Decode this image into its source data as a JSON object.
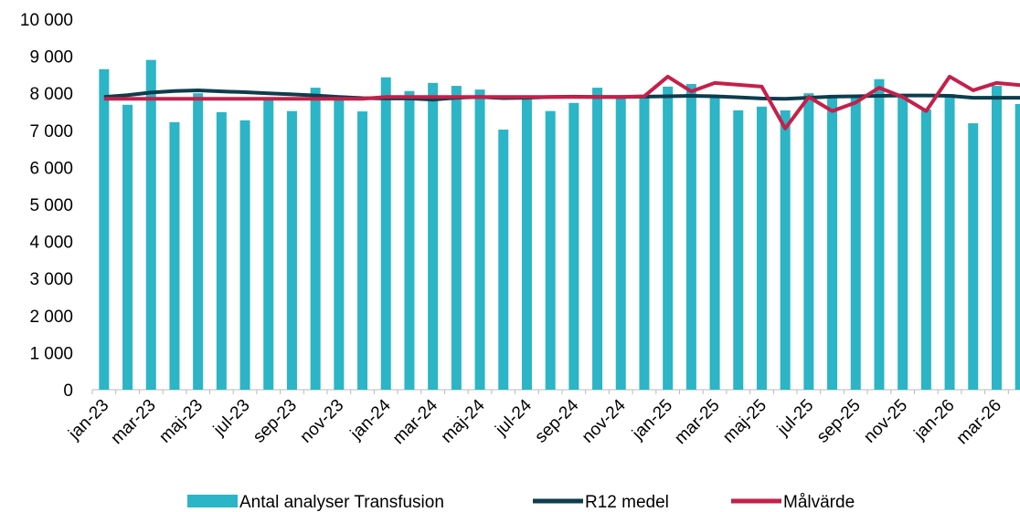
{
  "chart_data": {
    "type": "bar_line",
    "categories": [
      "jan-23",
      null,
      "mar-23",
      null,
      "maj-23",
      null,
      "jul-23",
      null,
      "sep-23",
      null,
      "nov-23",
      null,
      "jan-24",
      null,
      "mar-24",
      null,
      "maj-24",
      null,
      "jul-24",
      null,
      "sep-24",
      null,
      "nov-24",
      null,
      "jan-25",
      null,
      "mar-25",
      null,
      "maj-25",
      null,
      "jul-25",
      null,
      "sep-25",
      null,
      "nov-25",
      null,
      "jan-26",
      null,
      "mar-26",
      null
    ],
    "series": [
      {
        "name": "Antal analyser Transfusion",
        "type": "bar",
        "color": "#2bb5c6",
        "values": [
          8650,
          7690,
          8900,
          7220,
          8000,
          7490,
          7270,
          7860,
          7520,
          8150,
          7860,
          7510,
          8430,
          8060,
          8280,
          8200,
          8100,
          7020,
          7880,
          7520,
          7740,
          8150,
          7900,
          7950,
          8180,
          8250,
          7900,
          7540,
          7640,
          7540,
          8000,
          7950,
          7950,
          8380,
          7950,
          7560,
          7980,
          7190,
          8200,
          7710
        ]
      },
      {
        "name": "R12 medel",
        "type": "line",
        "color": "#0d3d4d",
        "values": [
          7900,
          7950,
          8020,
          8060,
          8080,
          8050,
          8030,
          8000,
          7970,
          7940,
          7900,
          7870,
          7860,
          7860,
          7830,
          7880,
          7900,
          7870,
          7880,
          7900,
          7910,
          7900,
          7900,
          7910,
          7920,
          7930,
          7920,
          7890,
          7860,
          7850,
          7880,
          7910,
          7920,
          7930,
          7940,
          7940,
          7930,
          7880,
          7880,
          7880
        ]
      },
      {
        "name": "Målvärde",
        "type": "line",
        "color": "#c4204a",
        "values": [
          7850,
          7850,
          7850,
          7850,
          7850,
          7850,
          7850,
          7850,
          7850,
          7850,
          7850,
          7850,
          7900,
          7900,
          7900,
          7900,
          7900,
          7900,
          7900,
          7900,
          7900,
          7900,
          7900,
          7920,
          8450,
          8050,
          8280,
          8230,
          8180,
          7050,
          7900,
          7520,
          7750,
          8150,
          7900,
          7520,
          8450,
          8080,
          8280,
          8220
        ]
      }
    ],
    "ylim": [
      0,
      10000
    ],
    "yticks": [
      0,
      {
        "value": 1000,
        "label": "1 000"
      },
      {
        "value": 2000,
        "label": "2 000"
      },
      {
        "value": 3000,
        "label": "3 000"
      },
      {
        "value": 4000,
        "label": "4 000"
      },
      {
        "value": 5000,
        "label": "5 000"
      },
      {
        "value": 6000,
        "label": "6 000"
      },
      {
        "value": 7000,
        "label": "7 000"
      },
      {
        "value": 8000,
        "label": "8 000"
      },
      {
        "value": 9000,
        "label": "9 000"
      },
      {
        "value": 10000,
        "label": "10 000"
      }
    ],
    "legend": "bottom"
  }
}
